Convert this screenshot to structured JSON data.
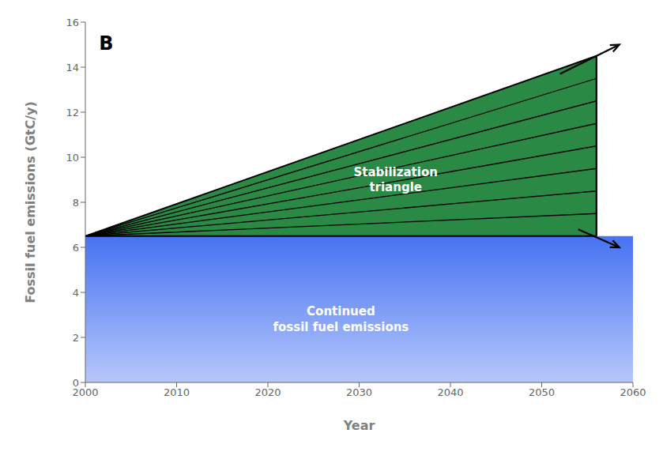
{
  "chart_data": {
    "type": "area",
    "x_label": "Year",
    "y_label": "Fossil fuel emissions (GtC/y)",
    "x": [
      2000,
      2056,
      2060
    ],
    "xlim": [
      2000,
      2060
    ],
    "xticks": [
      2000,
      2010,
      2020,
      2030,
      2040,
      2050,
      2060
    ],
    "ylim": [
      0,
      16
    ],
    "yticks": [
      0,
      2,
      4,
      6,
      8,
      10,
      12,
      14,
      16
    ],
    "series": [
      {
        "color": "#4773f2",
        "values": [
          6.5,
          6.5,
          6.5
        ]
      },
      {
        "color": "#2a8a45",
        "values": [
          6.5,
          14.5,
          null
        ]
      }
    ],
    "fan_line_ends": [
      7.5,
      8.5,
      9.5,
      10.5,
      11.5,
      12.5,
      13.5
    ],
    "annotations": [
      "B",
      "Stabilization\ntriangle",
      "Continued\nfossil fuel emissions"
    ]
  }
}
